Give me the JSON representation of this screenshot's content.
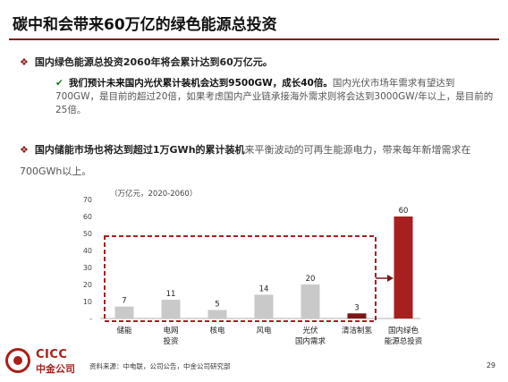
{
  "title": "碳中和会带来60万亿的绿色能源总投资",
  "bullets": {
    "b1": "国内绿色能源总投资2060年将会累计达到60万亿元。",
    "b2_strong": "我们预计未来国内光伏累计装机会达到9500GW，成长40倍。",
    "b2_rest": "国内光伏市场年需求有望达到700GW，是目前的超过20倍，如果考虑国内产业链承接海外需求则将会达到3000GW/年以上，是目前的25倍。",
    "b3_strong": "国内储能市场也将达到超过1万GWh的累计装机",
    "b3_rest": "来平衡波动的可再生能源电力，带来每年新增需求在700GWh以上。"
  },
  "chart_data": {
    "type": "bar",
    "unit_label": "（万亿元，2020-2060）",
    "categories": [
      [
        "储能"
      ],
      [
        "电网",
        "投资"
      ],
      [
        "核电"
      ],
      [
        "风电"
      ],
      [
        "光伏",
        "国内需求"
      ],
      [
        "清洁制氢"
      ],
      [
        "国内绿色",
        "能源总投资"
      ]
    ],
    "values": [
      7,
      11,
      5,
      14,
      20,
      3,
      60
    ],
    "ylim": [
      0,
      70
    ],
    "yticks": [
      0,
      10,
      20,
      30,
      40,
      50,
      60,
      70
    ],
    "ytick_labels": [
      "-",
      "10",
      "20",
      "30",
      "40",
      "50",
      "60",
      "70"
    ],
    "colors": {
      "grey": "#c9c9c9",
      "dark": "#7a1616",
      "total": "#a81f1f",
      "axis": "#999999"
    },
    "highlight_total_index": 6,
    "highlight_dark_index": 5
  },
  "logo": {
    "en": "CICC",
    "cn": "中金公司"
  },
  "source": "资料来源：中电联，公司公告，中金公司研究部",
  "page_number": "29"
}
